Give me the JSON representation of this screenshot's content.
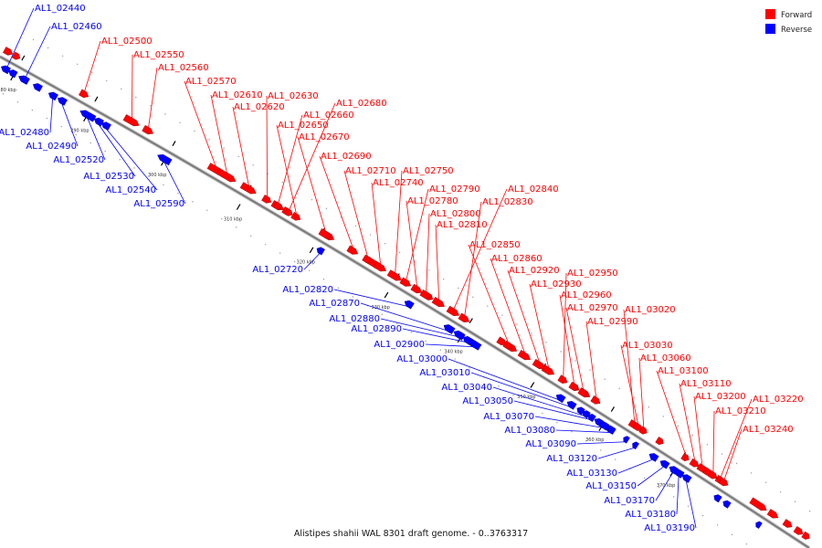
{
  "title": "Alistipes shahii WAL 8301 draft genome. - 0..3763317",
  "legend": [
    {
      "label": "Forward",
      "color": "#ff0000"
    },
    {
      "label": "Reverse",
      "color": "#0000ff"
    }
  ],
  "colors": {
    "forward": "#ff0000",
    "reverse": "#0000ff",
    "backbone": "#888888"
  },
  "ticks": [
    "280 kbp",
    "290 kbp",
    "300 kbp",
    "310 kbp",
    "320 kbp",
    "330 kbp",
    "340 kbp",
    "350 kbp",
    "360 kbp",
    "370 kbp"
  ],
  "forward_labels": [
    "AL1_02500",
    "AL1_02550",
    "AL1_02560",
    "AL1_02570",
    "AL1_02610",
    "AL1_02620",
    "AL1_02630",
    "AL1_02660",
    "AL1_02680",
    "AL1_02650",
    "AL1_02670",
    "AL1_02690",
    "AL1_02710",
    "AL1_02740",
    "AL1_02750",
    "AL1_02790",
    "AL1_02780",
    "AL1_02800",
    "AL1_02810",
    "AL1_02840",
    "AL1_02830",
    "AL1_02850",
    "AL1_02860",
    "AL1_02920",
    "AL1_02930",
    "AL1_02950",
    "AL1_02960",
    "AL1_02970",
    "AL1_02990",
    "AL1_03020",
    "AL1_03030",
    "AL1_03060",
    "AL1_03100",
    "AL1_03110",
    "AL1_03200",
    "AL1_03210",
    "AL1_03220",
    "AL1_03240"
  ],
  "reverse_labels": [
    "AL1_02440",
    "AL1_02460",
    "AL1_02480",
    "AL1_02490",
    "AL1_02520",
    "AL1_02530",
    "AL1_02540",
    "AL1_02590",
    "AL1_02720",
    "AL1_02820",
    "AL1_02870",
    "AL1_02880",
    "AL1_02890",
    "AL1_02900",
    "AL1_03000",
    "AL1_03010",
    "AL1_03040",
    "AL1_03050",
    "AL1_03070",
    "AL1_03080",
    "AL1_03090",
    "AL1_03120",
    "AL1_03130",
    "AL1_03150",
    "AL1_03170",
    "AL1_03180",
    "AL1_03190"
  ]
}
